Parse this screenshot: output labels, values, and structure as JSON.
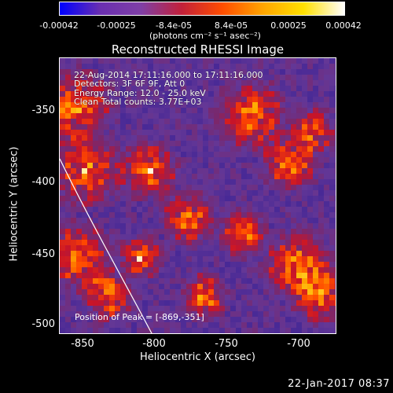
{
  "colorbar": {
    "ticks": [
      "-0.00042",
      "-0.00025",
      "-8.4e-05",
      "8.4e-05",
      "0.00025",
      "0.00042"
    ],
    "units": "(photons cm⁻² s⁻¹ asec⁻²)",
    "colors": [
      "#0000ff",
      "#6a2fb0",
      "#7f3fa6",
      "#c2203a",
      "#ff4d00",
      "#ffa500",
      "#ffe000",
      "#ffffff"
    ]
  },
  "plot": {
    "title": "Reconstructed RHESSI Image",
    "info_lines": [
      "22-Aug-2014 17:11:16.000 to 17:11:16.000",
      "Detectors: 3F 6F 9F, Att 0",
      "Energy Range: 12.0 - 25.0 keV",
      "Clean    Total counts: 3.77E+03"
    ],
    "peak_label": "Position of Peak = [-869,-351]",
    "xlabel": "Heliocentric X (arcsec)",
    "ylabel": "Heliocentric Y (arcsec)",
    "xticks": [
      "-850",
      "-800",
      "-750",
      "-700"
    ],
    "yticks": [
      "-350",
      "-400",
      "-450",
      "-500"
    ],
    "xlim": [
      -869,
      -677
    ],
    "ylim": [
      -503,
      -312
    ]
  },
  "footer": {
    "date": "22-Jan-2017 08:37"
  }
}
